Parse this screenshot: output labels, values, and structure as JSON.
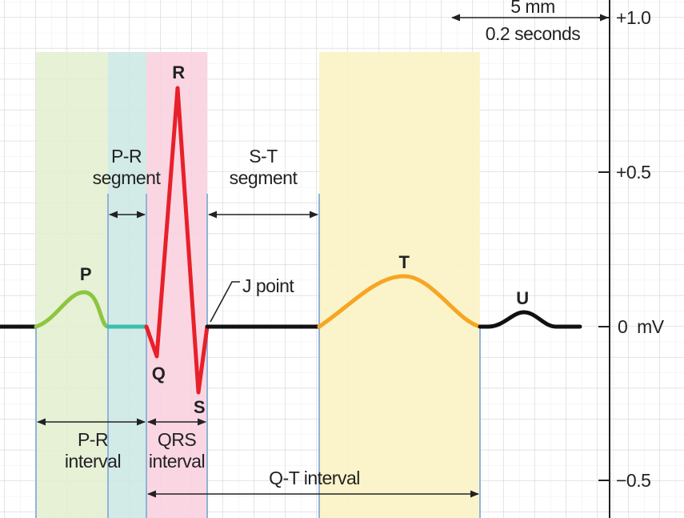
{
  "scale": {
    "length": "5 mm",
    "time": "0.2 seconds"
  },
  "axis_labels": [
    "+1.0",
    "+0.5",
    "0  mV",
    "−0.5"
  ],
  "waves": {
    "p": "P",
    "q": "Q",
    "r": "R",
    "s": "S",
    "t": "T",
    "u": "U"
  },
  "annotations": {
    "pr_segment": [
      "P-R",
      "segment"
    ],
    "st_segment": [
      "S-T",
      "segment"
    ],
    "j_point": "J point",
    "pr_interval": [
      "P-R",
      "interval"
    ],
    "qrs_interval": [
      "QRS",
      "interval"
    ],
    "qt_interval": "Q-T interval"
  }
}
